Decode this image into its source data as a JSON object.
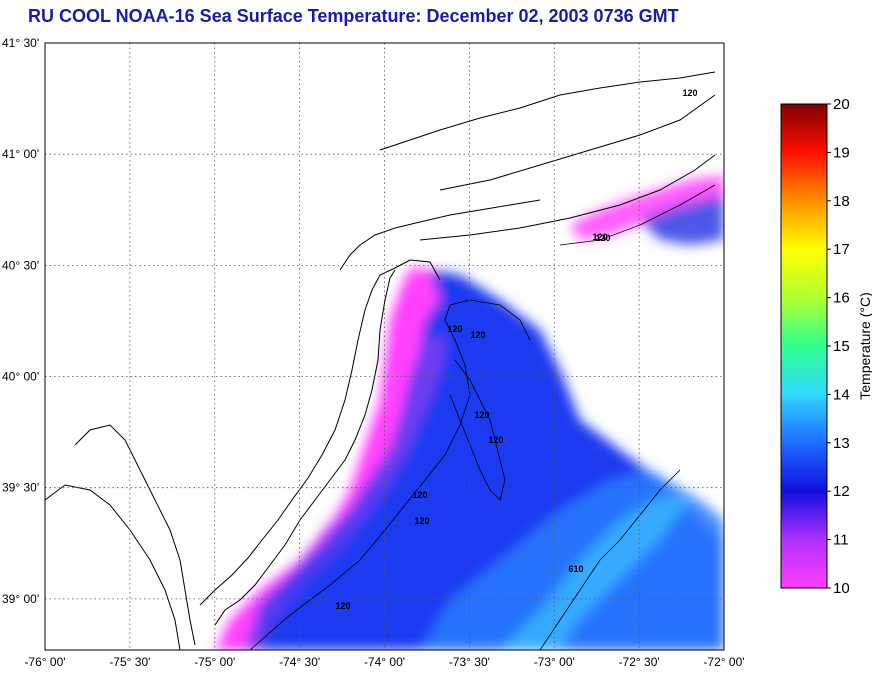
{
  "title": "RU COOL  NOAA-16  Sea Surface Temperature:  December 02, 2003 0736 GMT",
  "map": {
    "lon_labels": [
      "-76° 00'",
      "-75° 30'",
      "-75° 00'",
      "-74° 30'",
      "-74° 00'",
      "-73° 30'",
      "-73° 00'",
      "-72° 30'",
      "-72° 00'"
    ],
    "lat_labels": [
      "41° 30'",
      "41° 00'",
      "40° 30'",
      "40° 00'",
      "39° 30'",
      "39° 00'"
    ],
    "lon_range": [
      -76.0,
      -72.0
    ],
    "lat_range": [
      38.77,
      41.5
    ],
    "grid": "dotted",
    "contour_labels": [
      "120",
      "120",
      "120",
      "120",
      "120",
      "120",
      "120",
      "120",
      "120",
      "120",
      "610"
    ]
  },
  "colorbar": {
    "label": "Temperature (°C)",
    "ticks": [
      "10",
      "11",
      "12",
      "13",
      "14",
      "15",
      "16",
      "17",
      "18",
      "19",
      "20"
    ],
    "range": [
      10,
      20
    ],
    "colors": [
      "#ff40ff",
      "#b030ff",
      "#1010e0",
      "#1e6cff",
      "#30d8ff",
      "#30ff90",
      "#b0ff30",
      "#ffff00",
      "#ff9000",
      "#ff1000",
      "#800000"
    ]
  }
}
